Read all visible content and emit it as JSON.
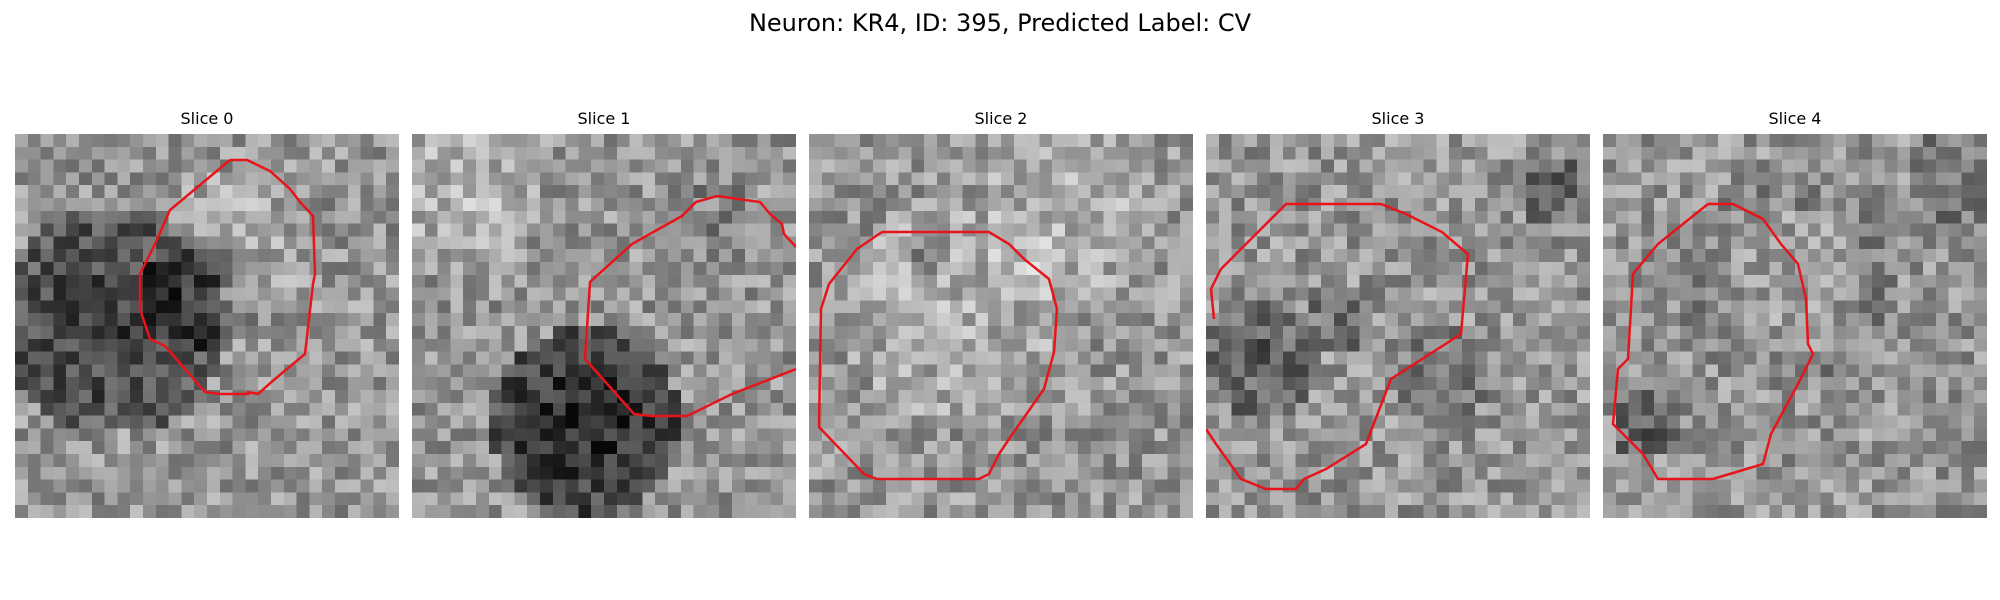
{
  "figure": {
    "title": "Neuron: KR4, ID: 395, Predicted Label: CV",
    "contour_color": "#e8141a",
    "slices": [
      {
        "title": "Slice 0"
      },
      {
        "title": "Slice 1"
      },
      {
        "title": "Slice 2"
      },
      {
        "title": "Slice 3"
      },
      {
        "title": "Slice 4"
      }
    ]
  }
}
